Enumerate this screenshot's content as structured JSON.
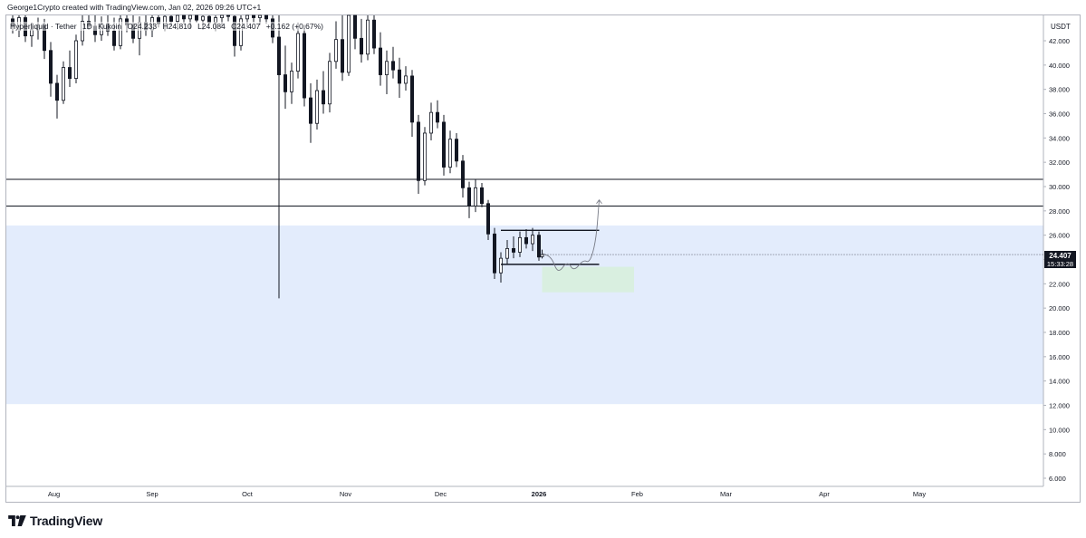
{
  "attribution": "George1Crypto created with TradingView.com, Jan 02, 2026 09:26 UTC+1",
  "symbol": {
    "exchange_name": "Hyperliquid · Tether",
    "interval": "1D",
    "source": "Kukoin",
    "ohlc_open": "O24.233",
    "ohlc_high": "H24.810",
    "ohlc_low": "L24.084",
    "ohlc_close": "C24.407",
    "change": "+0.162 (+0.67%)"
  },
  "currency": "USDT",
  "last_price": {
    "price": "24.407",
    "countdown": "15:33:28"
  },
  "logo_text": "TradingView",
  "colors": {
    "candle": "#131722",
    "zone_fill": "#e3ecfc",
    "target_fill": "#d9efe0",
    "level_line": "#131722",
    "axis_text": "#131722"
  },
  "chart_data": {
    "type": "candlestick",
    "y_axis": {
      "ticks": [
        "6.000",
        "8.000",
        "10.000",
        "12.000",
        "14.000",
        "16.000",
        "18.000",
        "20.000",
        "22.000",
        "24.000",
        "26.000",
        "28.000",
        "30.000",
        "32.000",
        "34.000",
        "36.000",
        "38.000",
        "40.000",
        "42.000"
      ],
      "min": 5,
      "max": 44
    },
    "x_axis": {
      "labels": [
        "Aug",
        "Sep",
        "Oct",
        "Nov",
        "Dec",
        "2026",
        "Feb",
        "Mar",
        "Apr",
        "May"
      ],
      "bold_label": "2026"
    },
    "time_range": [
      "2025-07-17",
      "2026-05-31"
    ],
    "horizontal_levels": [
      30.6,
      28.4
    ],
    "demand_zone": {
      "top": 26.8,
      "bottom": 12.1
    },
    "range_box": {
      "top": 26.4,
      "bottom": 23.6,
      "start": "2025-12-20",
      "end": "2026-01-20"
    },
    "target_zone": {
      "top": 23.4,
      "bottom": 21.3,
      "start": "2026-01-02",
      "end": "2026-01-31"
    },
    "projection": [
      [
        "2026-01-02",
        24.5
      ],
      [
        "2026-01-05",
        24.2
      ],
      [
        "2026-01-07",
        22.8
      ],
      [
        "2026-01-10",
        23.9
      ],
      [
        "2026-01-12",
        23.0
      ],
      [
        "2026-01-15",
        24.0
      ],
      [
        "2026-01-17",
        23.7
      ],
      [
        "2026-01-19",
        25.5
      ],
      [
        "2026-01-20",
        28.9
      ]
    ],
    "ohlc": [
      [
        "2025-07-19",
        43.8,
        44.5,
        42.6,
        43.2
      ],
      [
        "2025-07-21",
        43.2,
        44.8,
        42.3,
        43.9
      ],
      [
        "2025-07-23",
        43.9,
        44.6,
        41.9,
        42.4
      ],
      [
        "2025-07-25",
        42.4,
        43.5,
        41.5,
        42.9
      ],
      [
        "2025-07-27",
        42.9,
        43.9,
        42.1,
        43.3
      ],
      [
        "2025-07-29",
        43.3,
        43.8,
        40.5,
        41.2
      ],
      [
        "2025-07-31",
        41.2,
        41.9,
        37.4,
        38.5
      ],
      [
        "2025-08-02",
        38.5,
        39.2,
        35.6,
        37.1
      ],
      [
        "2025-08-04",
        37.1,
        40.3,
        36.8,
        39.8
      ],
      [
        "2025-08-06",
        39.8,
        41.2,
        38.2,
        38.9
      ],
      [
        "2025-08-08",
        38.9,
        42.5,
        38.5,
        42.0
      ],
      [
        "2025-08-10",
        42.0,
        44.2,
        41.6,
        43.6
      ],
      [
        "2025-08-12",
        43.6,
        44.5,
        42.9,
        43.2
      ],
      [
        "2025-08-14",
        43.2,
        44.3,
        41.9,
        42.5
      ],
      [
        "2025-08-16",
        42.5,
        44.0,
        42.0,
        43.4
      ],
      [
        "2025-08-18",
        43.4,
        44.4,
        42.4,
        42.8
      ],
      [
        "2025-08-20",
        42.8,
        43.9,
        41.2,
        41.6
      ],
      [
        "2025-08-22",
        41.6,
        44.1,
        41.3,
        43.8
      ],
      [
        "2025-08-24",
        43.8,
        44.6,
        42.7,
        43.3
      ],
      [
        "2025-08-26",
        43.3,
        44.2,
        41.8,
        42.2
      ],
      [
        "2025-08-28",
        42.2,
        44.0,
        40.8,
        43.5
      ],
      [
        "2025-08-30",
        43.5,
        44.5,
        42.4,
        42.9
      ],
      [
        "2025-09-01",
        42.9,
        44.3,
        42.3,
        43.9
      ],
      [
        "2025-09-03",
        43.9,
        44.6,
        43.1,
        43.4
      ],
      [
        "2025-09-05",
        43.4,
        44.5,
        42.8,
        44.0
      ],
      [
        "2025-09-07",
        44.0,
        44.7,
        43.2,
        43.6
      ],
      [
        "2025-09-09",
        43.6,
        44.6,
        42.9,
        44.1
      ],
      [
        "2025-09-11",
        44.1,
        44.8,
        43.4,
        43.8
      ],
      [
        "2025-09-13",
        43.8,
        44.7,
        43.0,
        44.2
      ],
      [
        "2025-09-15",
        44.2,
        44.9,
        43.5,
        43.7
      ],
      [
        "2025-09-17",
        43.7,
        44.6,
        42.9,
        44.0
      ],
      [
        "2025-09-19",
        44.0,
        44.8,
        43.4,
        43.5
      ],
      [
        "2025-09-21",
        43.5,
        44.5,
        42.8,
        43.9
      ],
      [
        "2025-09-23",
        43.9,
        44.7,
        43.2,
        44.3
      ],
      [
        "2025-09-25",
        44.3,
        44.9,
        43.6,
        44.0
      ],
      [
        "2025-09-27",
        44.0,
        44.6,
        40.7,
        41.6
      ],
      [
        "2025-09-29",
        41.6,
        44.3,
        41.2,
        43.8
      ],
      [
        "2025-10-01",
        43.8,
        44.8,
        43.1,
        44.4
      ],
      [
        "2025-10-03",
        44.4,
        44.9,
        43.5,
        43.9
      ],
      [
        "2025-10-05",
        43.9,
        44.7,
        43.3,
        44.3
      ],
      [
        "2025-10-07",
        44.3,
        44.8,
        43.4,
        43.8
      ],
      [
        "2025-10-09",
        43.8,
        44.6,
        41.8,
        42.3
      ],
      [
        "2025-10-11",
        42.3,
        44.5,
        20.8,
        39.2
      ],
      [
        "2025-10-13",
        39.2,
        41.6,
        36.4,
        37.8
      ],
      [
        "2025-10-15",
        37.8,
        40.2,
        36.8,
        39.5
      ],
      [
        "2025-10-17",
        39.5,
        43.5,
        38.9,
        42.6
      ],
      [
        "2025-10-19",
        42.6,
        43.3,
        36.6,
        37.3
      ],
      [
        "2025-10-21",
        37.3,
        38.5,
        33.6,
        35.2
      ],
      [
        "2025-10-23",
        35.2,
        38.8,
        34.7,
        37.9
      ],
      [
        "2025-10-25",
        37.9,
        39.5,
        36.0,
        36.8
      ],
      [
        "2025-10-27",
        36.8,
        41.0,
        36.1,
        40.3
      ],
      [
        "2025-10-29",
        40.3,
        43.6,
        39.7,
        42.1
      ],
      [
        "2025-10-31",
        42.1,
        44.1,
        38.7,
        39.4
      ],
      [
        "2025-11-02",
        39.4,
        44.7,
        39.1,
        44.2
      ],
      [
        "2025-11-04",
        44.2,
        44.7,
        41.3,
        42.2
      ],
      [
        "2025-11-06",
        42.2,
        43.8,
        40.2,
        40.9
      ],
      [
        "2025-11-08",
        40.9,
        44.2,
        40.4,
        43.7
      ],
      [
        "2025-11-10",
        43.7,
        44.8,
        40.9,
        41.4
      ],
      [
        "2025-11-12",
        41.4,
        42.7,
        38.3,
        39.2
      ],
      [
        "2025-11-14",
        39.2,
        41.2,
        37.6,
        40.3
      ],
      [
        "2025-11-16",
        40.3,
        41.5,
        38.9,
        39.6
      ],
      [
        "2025-11-18",
        39.6,
        40.6,
        37.3,
        38.5
      ],
      [
        "2025-11-20",
        38.5,
        39.9,
        37.9,
        39.1
      ],
      [
        "2025-11-22",
        39.1,
        39.6,
        34.1,
        35.3
      ],
      [
        "2025-11-24",
        35.3,
        35.9,
        29.4,
        30.5
      ],
      [
        "2025-11-26",
        30.5,
        34.9,
        30.1,
        34.4
      ],
      [
        "2025-11-28",
        34.4,
        36.9,
        33.8,
        36.1
      ],
      [
        "2025-11-30",
        36.1,
        37.1,
        34.8,
        35.3
      ],
      [
        "2025-12-02",
        35.3,
        35.9,
        30.9,
        31.6
      ],
      [
        "2025-12-04",
        31.6,
        34.6,
        31.1,
        33.9
      ],
      [
        "2025-12-06",
        33.9,
        34.4,
        31.6,
        32.1
      ],
      [
        "2025-12-08",
        32.1,
        32.6,
        29.1,
        29.9
      ],
      [
        "2025-12-10",
        29.9,
        30.4,
        27.4,
        28.4
      ],
      [
        "2025-12-12",
        28.4,
        30.6,
        27.9,
        29.9
      ],
      [
        "2025-12-14",
        29.9,
        30.3,
        28.3,
        28.6
      ],
      [
        "2025-12-16",
        28.6,
        28.9,
        25.6,
        26.1
      ],
      [
        "2025-12-18",
        26.1,
        26.6,
        22.4,
        22.9
      ],
      [
        "2025-12-20",
        22.9,
        24.6,
        22.1,
        24.1
      ],
      [
        "2025-12-22",
        24.1,
        25.6,
        23.6,
        24.9
      ],
      [
        "2025-12-24",
        24.9,
        25.9,
        24.1,
        24.6
      ],
      [
        "2025-12-26",
        24.6,
        26.3,
        24.2,
        25.8
      ],
      [
        "2025-12-28",
        25.8,
        26.5,
        24.9,
        25.3
      ],
      [
        "2025-12-30",
        25.3,
        26.6,
        24.7,
        26.0
      ],
      [
        "2026-01-01",
        26.0,
        26.3,
        23.9,
        24.2
      ],
      [
        "2026-01-02",
        24.233,
        24.81,
        24.084,
        24.407
      ]
    ]
  }
}
